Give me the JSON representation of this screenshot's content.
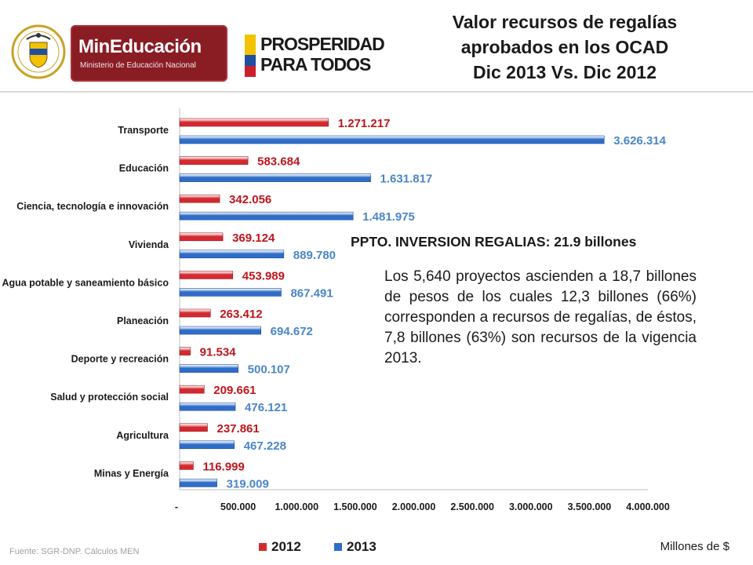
{
  "header": {
    "mined_name": "MinEducación",
    "mined_sub": "Ministerio de Educación Nacional",
    "prosperidad_line1": "PROSPERIDAD",
    "prosperidad_line2": "PARA TODOS",
    "title_lines": [
      "Valor recursos de regalías",
      "aprobados en los OCAD",
      "Dic 2013 Vs. Dic 2012"
    ]
  },
  "colors": {
    "series_2012": "#d42a2f",
    "series_2013": "#2f6dc8",
    "label_2012": "#c0141c",
    "label_2013": "#4a86c8",
    "brand_red": "#8a1c24",
    "flag_yellow": "#f3c300",
    "flag_blue": "#1f4fa0",
    "flag_red": "#cc1f2a"
  },
  "icons": {
    "seal": "colombia-coat-of-arms-icon",
    "prosperidad": "colombia-flag-stripe-icon"
  },
  "chart_data": {
    "type": "bar",
    "orientation": "horizontal",
    "categories": [
      "Transporte",
      "Educación",
      "Ciencia, tecnología e innovación",
      "Vivienda",
      "Agua potable y saneamiento básico",
      "Planeación",
      "Deporte y recreación",
      "Salud y protección social",
      "Agricultura",
      "Minas y Energía"
    ],
    "series": [
      {
        "name": "2012",
        "values": [
          1271217,
          583684,
          342056,
          369124,
          453989,
          263412,
          91534,
          209661,
          237861,
          116999
        ],
        "labels": [
          "1.271.217",
          "583.684",
          "342.056",
          "369.124",
          "453.989",
          "263.412",
          "91.534",
          "209.661",
          "237.861",
          "116.999"
        ]
      },
      {
        "name": "2013",
        "values": [
          3626314,
          1631817,
          1481975,
          889780,
          867491,
          694672,
          500107,
          476121,
          467228,
          319009
        ],
        "labels": [
          "3.626.314",
          "1.631.817",
          "1.481.975",
          "889.780",
          "867.491",
          "694.672",
          "500.107",
          "476.121",
          "467.228",
          "319.009"
        ]
      }
    ],
    "xlim": [
      0,
      4000000
    ],
    "x_ticks": [
      0,
      500000,
      1000000,
      1500000,
      2000000,
      2500000,
      3000000,
      3500000,
      4000000
    ],
    "x_tick_labels": [
      "-",
      "500.000",
      "1.000.000",
      "1.500.000",
      "2.000.000",
      "2.500.000",
      "3.000.000",
      "3.500.000",
      "4.000.000"
    ],
    "legend_position": "bottom",
    "grid": false
  },
  "annotations": {
    "ppto": "PPTO. INVERSION REGALIAS: 21.9 billones",
    "paragraph": "Los 5,640 proyectos ascienden a 18,7 billones de pesos de los cuales 12,3 billones (66%) corresponden a recursos de regalías, de éstos, 7,8 billones (63%) son recursos de la vigencia 2013."
  },
  "footer": {
    "fuente": "Fuente: SGR-DNP. Cálculos MEN",
    "units": "Millones de $"
  }
}
